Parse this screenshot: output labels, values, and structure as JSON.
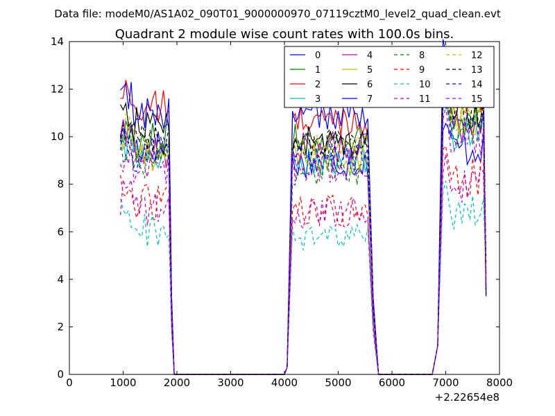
{
  "chart_data": {
    "type": "line",
    "suptitle": "Data file: modeM0/AS1A02_090T01_9000000970_07119cztM0_level2_quad_clean.evt",
    "title": "Quadrant 2 module wise count rates with 100.0s bins.",
    "xlabel": "",
    "ylabel": "",
    "x_offset_label": "+2.22654e8",
    "xlim": [
      0,
      8000
    ],
    "ylim": [
      0,
      14
    ],
    "xticks": [
      "0",
      "1000",
      "2000",
      "3000",
      "4000",
      "5000",
      "6000",
      "7000",
      "8000"
    ],
    "yticks": [
      "0",
      "2",
      "4",
      "6",
      "8",
      "10",
      "12",
      "14"
    ],
    "legend_position": "top-right",
    "segments": [
      {
        "start": 950,
        "end": 1850,
        "rise_end": 950,
        "fall_to": 1950
      },
      {
        "start": 4150,
        "end": 5550,
        "rise_from": 3950,
        "fall_to": 5750
      },
      {
        "start": 6950,
        "end": 7750,
        "rise_from": 6700,
        "fall_to": 7750
      }
    ],
    "series": [
      {
        "name": "0",
        "color": "#0000ff",
        "style": "solid",
        "levels": [
          9.6,
          8.9,
          9.5
        ]
      },
      {
        "name": "1",
        "color": "#008000",
        "style": "solid",
        "levels": [
          9.8,
          9.9,
          10.8
        ]
      },
      {
        "name": "2",
        "color": "#ff0000",
        "style": "solid",
        "levels": [
          11.2,
          10.7,
          11.5
        ]
      },
      {
        "name": "3",
        "color": "#00bfbf",
        "style": "solid",
        "levels": [
          9.1,
          9.0,
          10.2
        ]
      },
      {
        "name": "4",
        "color": "#bf00bf",
        "style": "solid",
        "levels": [
          9.4,
          9.6,
          10.5
        ]
      },
      {
        "name": "5",
        "color": "#bfbf00",
        "style": "solid",
        "levels": [
          9.3,
          9.1,
          10.6
        ]
      },
      {
        "name": "6",
        "color": "#000000",
        "style": "solid",
        "levels": [
          10.5,
          9.8,
          11.0
        ]
      },
      {
        "name": "7",
        "color": "#0000ff",
        "style": "solid",
        "levels": [
          11.0,
          10.9,
          12.3
        ]
      },
      {
        "name": "8",
        "color": "#008000",
        "style": "dashed",
        "levels": [
          9.0,
          8.6,
          10.4
        ]
      },
      {
        "name": "9",
        "color": "#ff0000",
        "style": "dashed",
        "levels": [
          7.2,
          6.9,
          8.3
        ]
      },
      {
        "name": "10",
        "color": "#00bfbf",
        "style": "dashed",
        "levels": [
          6.1,
          5.7,
          6.8
        ]
      },
      {
        "name": "11",
        "color": "#bf00bf",
        "style": "dashed",
        "levels": [
          6.9,
          6.8,
          7.9
        ]
      },
      {
        "name": "12",
        "color": "#bfbf00",
        "style": "dashed",
        "levels": [
          9.7,
          9.5,
          10.8
        ]
      },
      {
        "name": "13",
        "color": "#000000",
        "style": "dashed",
        "levels": [
          9.9,
          9.7,
          11.0
        ]
      },
      {
        "name": "14",
        "color": "#0000ff",
        "style": "dashed",
        "levels": [
          9.3,
          9.2,
          10.4
        ]
      },
      {
        "name": "15",
        "color": "#bf00bf",
        "style": "dashed",
        "levels": [
          8.6,
          8.7,
          9.8
        ]
      }
    ]
  }
}
